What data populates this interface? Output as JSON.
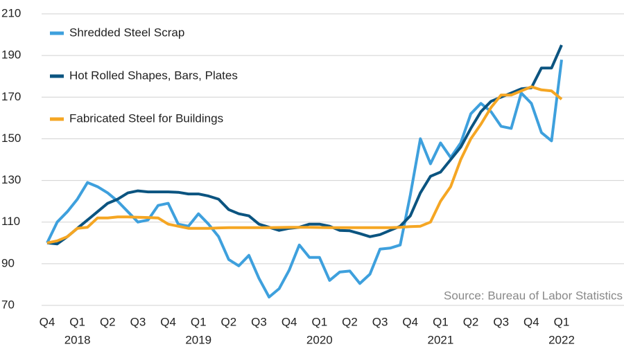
{
  "chart_data": {
    "type": "line",
    "categories": [
      "Q4",
      null,
      null,
      "Q1",
      null,
      null,
      "Q2",
      null,
      null,
      "Q3",
      null,
      null,
      "Q4",
      null,
      null,
      "Q1",
      null,
      null,
      "Q2",
      null,
      null,
      "Q3",
      null,
      null,
      "Q4",
      null,
      null,
      "Q1",
      null,
      null,
      "Q2",
      null,
      null,
      "Q3",
      null,
      null,
      "Q4",
      null,
      null,
      "Q1",
      null,
      null,
      "Q2",
      null,
      null,
      "Q3",
      null,
      null,
      "Q4",
      null,
      null,
      "Q1"
    ],
    "years": [
      null,
      null,
      null,
      "2018",
      null,
      null,
      null,
      null,
      null,
      null,
      null,
      null,
      null,
      null,
      null,
      "2019",
      null,
      null,
      null,
      null,
      null,
      null,
      null,
      null,
      null,
      null,
      null,
      "2020",
      null,
      null,
      null,
      null,
      null,
      null,
      null,
      null,
      null,
      null,
      null,
      "2021",
      null,
      null,
      null,
      null,
      null,
      null,
      null,
      null,
      null,
      null,
      null,
      "2022"
    ],
    "series": [
      {
        "name": "Shredded Steel Scrap",
        "color": "#3ea0dd",
        "values": [
          100,
          110,
          115,
          121,
          129,
          127,
          124,
          120,
          115,
          110,
          111,
          118,
          119,
          109,
          108,
          114,
          109,
          103,
          92,
          89,
          94,
          83,
          74,
          78,
          87,
          99,
          93,
          93,
          82,
          86,
          86.5,
          80.5,
          85,
          97,
          97.5,
          99,
          123,
          150,
          138,
          148,
          141,
          148,
          162,
          167,
          163,
          156,
          155,
          172,
          167,
          153,
          149,
          188
        ]
      },
      {
        "name": "Hot Rolled Shapes, Bars, Plates",
        "color": "#0b5480",
        "values": [
          100,
          99.5,
          103,
          107,
          111,
          115,
          119,
          121,
          124,
          125,
          124.5,
          124.5,
          124.5,
          124.3,
          123.5,
          123.5,
          122.5,
          121,
          116,
          114,
          113,
          109,
          107.5,
          106,
          107,
          107.5,
          109,
          109,
          108,
          106,
          105.8,
          104.5,
          103,
          104,
          106,
          108,
          113,
          124,
          132,
          134,
          140,
          146,
          155,
          163,
          168,
          170,
          172,
          174,
          174.5,
          184,
          184,
          195
        ]
      },
      {
        "name": "Fabricated Steel for Buildings",
        "color": "#f5a623",
        "values": [
          100,
          101,
          103,
          107,
          107.5,
          112,
          112,
          112.5,
          112.5,
          112.3,
          112.2,
          112,
          109,
          108,
          107,
          107,
          107,
          107.2,
          107.3,
          107.3,
          107.3,
          107.3,
          107.3,
          107.4,
          107.5,
          107.5,
          107.5,
          107.4,
          107.3,
          107.3,
          107.3,
          107.3,
          107.3,
          107.3,
          107.3,
          107.5,
          107.8,
          108,
          110,
          120,
          127,
          140,
          150,
          157,
          165,
          171,
          171,
          173,
          175,
          173.5,
          173,
          169
        ]
      }
    ],
    "ylim": [
      70,
      210
    ],
    "yticks": [
      70,
      90,
      110,
      130,
      150,
      170,
      190,
      210
    ],
    "grid": true,
    "annotation": "Source: Bureau of Labor Statistics"
  }
}
